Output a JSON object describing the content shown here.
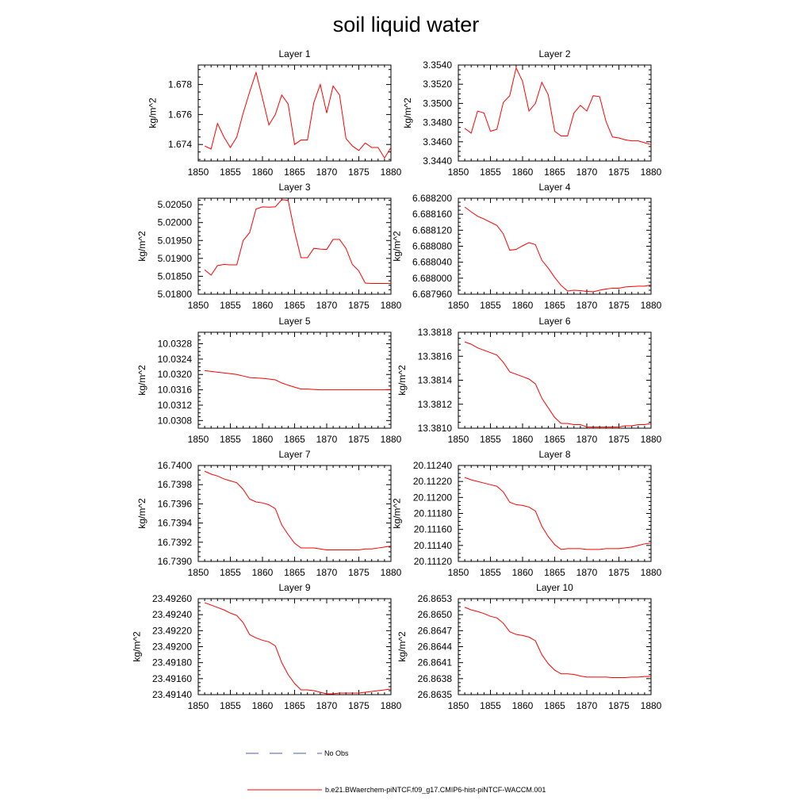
{
  "title": "soil liquid water",
  "colors": {
    "series": "#ff0000",
    "obs": "#4a5ab0",
    "axis": "#000000"
  },
  "legend": {
    "obs_label": "No Obs",
    "model_label": "b.e21.BWaerchem-piNTCF.f09_g17.CMIP6-hist-piNTCF-WACCM.001"
  },
  "chart_data": [
    {
      "type": "line",
      "title": "Layer 1",
      "xlabel": "",
      "ylabel": "kg/m^2",
      "xlim": [
        1850,
        1880
      ],
      "ylim": [
        1.6729,
        1.6793
      ],
      "xticks": [
        "1850",
        "1855",
        "1860",
        "1865",
        "1870",
        "1875",
        "1880"
      ],
      "yticks": [
        1.674,
        1.676,
        1.678
      ],
      "ytick_labels": [
        "1.674",
        "1.676",
        "1.678"
      ],
      "x": [
        1851,
        1852,
        1853,
        1854,
        1855,
        1856,
        1857,
        1858,
        1859,
        1860,
        1861,
        1862,
        1863,
        1864,
        1865,
        1866,
        1867,
        1868,
        1869,
        1870,
        1871,
        1872,
        1873,
        1874,
        1875,
        1876,
        1877,
        1878,
        1879,
        1880
      ],
      "series": [
        {
          "values": [
            1.6739,
            1.6737,
            1.6754,
            1.6745,
            1.6738,
            1.6745,
            1.6761,
            1.6775,
            1.6788,
            1.6771,
            1.6753,
            1.676,
            1.6773,
            1.6767,
            1.674,
            1.6743,
            1.6743,
            1.6768,
            1.678,
            1.6761,
            1.6779,
            1.6773,
            1.6744,
            1.6739,
            1.6736,
            1.6741,
            1.6738,
            1.6738,
            1.6731,
            1.6738
          ]
        }
      ]
    },
    {
      "type": "line",
      "title": "Layer 2",
      "xlabel": "",
      "ylabel": "kg/m^2",
      "xlim": [
        1850,
        1880
      ],
      "ylim": [
        3.344,
        3.354
      ],
      "xticks": [
        "1850",
        "1855",
        "1860",
        "1865",
        "1870",
        "1875",
        "1880"
      ],
      "yticks": [
        3.344,
        3.346,
        3.348,
        3.35,
        3.352,
        3.354
      ],
      "ytick_labels": [
        "3.3440",
        "3.3460",
        "3.3480",
        "3.3500",
        "3.3520",
        "3.3540"
      ],
      "x": [
        1851,
        1852,
        1853,
        1854,
        1855,
        1856,
        1857,
        1858,
        1859,
        1860,
        1861,
        1862,
        1863,
        1864,
        1865,
        1866,
        1867,
        1868,
        1869,
        1870,
        1871,
        1872,
        1873,
        1874,
        1875,
        1876,
        1877,
        1878,
        1879,
        1880
      ],
      "series": [
        {
          "values": [
            3.3474,
            3.3469,
            3.3492,
            3.349,
            3.3471,
            3.3473,
            3.3501,
            3.3508,
            3.3537,
            3.3523,
            3.3492,
            3.35,
            3.3522,
            3.3509,
            3.3471,
            3.3466,
            3.3466,
            3.349,
            3.3498,
            3.3492,
            3.3508,
            3.3507,
            3.3481,
            3.3465,
            3.3464,
            3.3462,
            3.3461,
            3.3461,
            3.3459,
            3.3457
          ]
        }
      ]
    },
    {
      "type": "line",
      "title": "Layer 3",
      "xlabel": "",
      "ylabel": "kg/m^2",
      "xlim": [
        1850,
        1880
      ],
      "ylim": [
        5.018,
        5.02068
      ],
      "xticks": [
        "1850",
        "1855",
        "1860",
        "1865",
        "1870",
        "1875",
        "1880"
      ],
      "yticks": [
        5.018,
        5.0185,
        5.019,
        5.0195,
        5.02,
        5.0205
      ],
      "ytick_labels": [
        "5.01800",
        "5.01850",
        "5.01900",
        "5.01950",
        "5.02000",
        "5.02050"
      ],
      "x": [
        1851,
        1852,
        1853,
        1854,
        1855,
        1856,
        1857,
        1858,
        1859,
        1860,
        1861,
        1862,
        1863,
        1864,
        1865,
        1866,
        1867,
        1868,
        1869,
        1870,
        1871,
        1872,
        1873,
        1874,
        1875,
        1876,
        1877,
        1878,
        1879,
        1880
      ],
      "series": [
        {
          "values": [
            5.01868,
            5.01853,
            5.0188,
            5.01883,
            5.01882,
            5.01882,
            5.0195,
            5.01972,
            5.02038,
            5.02044,
            5.02043,
            5.02044,
            5.02064,
            5.02062,
            5.01975,
            5.01902,
            5.01902,
            5.01928,
            5.01926,
            5.01925,
            5.01953,
            5.01953,
            5.01928,
            5.01883,
            5.01865,
            5.01831,
            5.0183,
            5.0183,
            5.0183,
            5.0183
          ]
        }
      ]
    },
    {
      "type": "line",
      "title": "Layer 4",
      "xlabel": "",
      "ylabel": "kg/m^2",
      "xlim": [
        1850,
        1880
      ],
      "ylim": [
        6.68796,
        6.6882
      ],
      "xticks": [
        "1850",
        "1855",
        "1860",
        "1865",
        "1870",
        "1875",
        "1880"
      ],
      "yticks": [
        6.68796,
        6.688,
        6.68804,
        6.68808,
        6.68812,
        6.68816,
        6.6882
      ],
      "ytick_labels": [
        "6.687960",
        "6.688000",
        "6.688040",
        "6.688080",
        "6.688120",
        "6.688160",
        "6.688200"
      ],
      "x": [
        1851,
        1852,
        1853,
        1854,
        1855,
        1856,
        1857,
        1858,
        1859,
        1860,
        1861,
        1862,
        1863,
        1864,
        1865,
        1866,
        1867,
        1868,
        1869,
        1870,
        1871,
        1872,
        1873,
        1874,
        1875,
        1876,
        1877,
        1878,
        1879,
        1880
      ],
      "series": [
        {
          "values": [
            6.688178,
            6.688166,
            6.688155,
            6.688148,
            6.68814,
            6.688132,
            6.688111,
            6.68807,
            6.688072,
            6.688081,
            6.688089,
            6.688084,
            6.688045,
            6.688025,
            6.688002,
            6.687982,
            6.687968,
            6.68797,
            6.687969,
            6.687967,
            6.687966,
            6.68797,
            6.687973,
            6.687975,
            6.687975,
            6.687978,
            6.687979,
            6.68798,
            6.68798,
            6.687983
          ]
        }
      ]
    },
    {
      "type": "line",
      "title": "Layer 5",
      "xlabel": "",
      "ylabel": "kg/m^2",
      "xlim": [
        1850,
        1880
      ],
      "ylim": [
        10.0306,
        10.0331
      ],
      "xticks": [
        "1850",
        "1855",
        "1860",
        "1865",
        "1870",
        "1875",
        "1880"
      ],
      "yticks": [
        10.0308,
        10.0312,
        10.0316,
        10.032,
        10.0324,
        10.0328
      ],
      "ytick_labels": [
        "10.0308",
        "10.0312",
        "10.0316",
        "10.0320",
        "10.0324",
        "10.0328"
      ],
      "x": [
        1851,
        1852,
        1853,
        1854,
        1855,
        1856,
        1857,
        1858,
        1859,
        1860,
        1861,
        1862,
        1863,
        1864,
        1865,
        1866,
        1867,
        1868,
        1869,
        1870,
        1871,
        1872,
        1873,
        1874,
        1875,
        1876,
        1877,
        1878,
        1879,
        1880
      ],
      "series": [
        {
          "values": [
            10.0321,
            10.03208,
            10.03206,
            10.03204,
            10.03202,
            10.032,
            10.03196,
            10.03192,
            10.03191,
            10.0319,
            10.03188,
            10.03186,
            10.03178,
            10.03172,
            10.03167,
            10.03162,
            10.03162,
            10.03161,
            10.0316,
            10.0316,
            10.0316,
            10.0316,
            10.0316,
            10.0316,
            10.0316,
            10.0316,
            10.0316,
            10.0316,
            10.0316,
            10.03161
          ]
        }
      ]
    },
    {
      "type": "line",
      "title": "Layer 6",
      "xlabel": "",
      "ylabel": "kg/m^2",
      "xlim": [
        1850,
        1880
      ],
      "ylim": [
        13.381,
        13.3818
      ],
      "xticks": [
        "1850",
        "1855",
        "1860",
        "1865",
        "1870",
        "1875",
        "1880"
      ],
      "yticks": [
        13.381,
        13.3812,
        13.3814,
        13.3816,
        13.3818
      ],
      "ytick_labels": [
        "13.3810",
        "13.3812",
        "13.3814",
        "13.3816",
        "13.3818"
      ],
      "x": [
        1851,
        1852,
        1853,
        1854,
        1855,
        1856,
        1857,
        1858,
        1859,
        1860,
        1861,
        1862,
        1863,
        1864,
        1865,
        1866,
        1867,
        1868,
        1869,
        1870,
        1871,
        1872,
        1873,
        1874,
        1875,
        1876,
        1877,
        1878,
        1879,
        1880
      ],
      "series": [
        {
          "values": [
            13.38172,
            13.3817,
            13.38167,
            13.38165,
            13.38163,
            13.38161,
            13.38155,
            13.38147,
            13.38145,
            13.38143,
            13.38141,
            13.38137,
            13.38125,
            13.38117,
            13.38109,
            13.38104,
            13.38104,
            13.38103,
            13.38103,
            13.38101,
            13.38101,
            13.38101,
            13.38101,
            13.38101,
            13.38101,
            13.38102,
            13.38102,
            13.38103,
            13.38103,
            13.38104
          ]
        }
      ]
    },
    {
      "type": "line",
      "title": "Layer 7",
      "xlabel": "",
      "ylabel": "kg/m^2",
      "xlim": [
        1850,
        1880
      ],
      "ylim": [
        16.739,
        16.74
      ],
      "xticks": [
        "1850",
        "1855",
        "1860",
        "1865",
        "1870",
        "1875",
        "1880"
      ],
      "yticks": [
        16.739,
        16.7392,
        16.7394,
        16.7396,
        16.7398,
        16.74
      ],
      "ytick_labels": [
        "16.7390",
        "16.7392",
        "16.7394",
        "16.7396",
        "16.7398",
        "16.7400"
      ],
      "x": [
        1851,
        1852,
        1853,
        1854,
        1855,
        1856,
        1857,
        1858,
        1859,
        1860,
        1861,
        1862,
        1863,
        1864,
        1865,
        1866,
        1867,
        1868,
        1869,
        1870,
        1871,
        1872,
        1873,
        1874,
        1875,
        1876,
        1877,
        1878,
        1879,
        1880
      ],
      "series": [
        {
          "values": [
            16.73994,
            16.73991,
            16.73989,
            16.73986,
            16.73984,
            16.73982,
            16.73975,
            16.73965,
            16.73962,
            16.73961,
            16.73959,
            16.73955,
            16.73938,
            16.73928,
            16.73919,
            16.73914,
            16.73914,
            16.73914,
            16.73913,
            16.73912,
            16.73912,
            16.73912,
            16.73912,
            16.73912,
            16.73912,
            16.73913,
            16.73913,
            16.73914,
            16.73915,
            16.73916
          ]
        }
      ]
    },
    {
      "type": "line",
      "title": "Layer 8",
      "xlabel": "",
      "ylabel": "kg/m^2",
      "xlim": [
        1850,
        1880
      ],
      "ylim": [
        20.1112,
        20.1124
      ],
      "xticks": [
        "1850",
        "1855",
        "1860",
        "1865",
        "1870",
        "1875",
        "1880"
      ],
      "yticks": [
        20.1112,
        20.1114,
        20.1116,
        20.1118,
        20.112,
        20.1122,
        20.1124
      ],
      "ytick_labels": [
        "20.11120",
        "20.11140",
        "20.11160",
        "20.11180",
        "20.11200",
        "20.11220",
        "20.11240"
      ],
      "x": [
        1851,
        1852,
        1853,
        1854,
        1855,
        1856,
        1857,
        1858,
        1859,
        1860,
        1861,
        1862,
        1863,
        1864,
        1865,
        1866,
        1867,
        1868,
        1869,
        1870,
        1871,
        1872,
        1873,
        1874,
        1875,
        1876,
        1877,
        1878,
        1879,
        1880
      ],
      "series": [
        {
          "values": [
            20.11225,
            20.11222,
            20.1122,
            20.11218,
            20.11216,
            20.11214,
            20.11207,
            20.11194,
            20.11191,
            20.1119,
            20.11188,
            20.11183,
            20.11164,
            20.11151,
            20.11141,
            20.11135,
            20.11136,
            20.11136,
            20.11136,
            20.11135,
            20.11135,
            20.11135,
            20.11136,
            20.11136,
            20.11136,
            20.11137,
            20.11138,
            20.1114,
            20.11142,
            20.11143
          ]
        }
      ]
    },
    {
      "type": "line",
      "title": "Layer 9",
      "xlabel": "",
      "ylabel": "kg/m^2",
      "xlim": [
        1850,
        1880
      ],
      "ylim": [
        23.4914,
        23.4926
      ],
      "xticks": [
        "1850",
        "1855",
        "1860",
        "1865",
        "1870",
        "1875",
        "1880"
      ],
      "yticks": [
        23.4914,
        23.4916,
        23.4918,
        23.492,
        23.4922,
        23.4924,
        23.4926
      ],
      "ytick_labels": [
        "23.49140",
        "23.49160",
        "23.49180",
        "23.49200",
        "23.49220",
        "23.49240",
        "23.49260"
      ],
      "x": [
        1851,
        1852,
        1853,
        1854,
        1855,
        1856,
        1857,
        1858,
        1859,
        1860,
        1861,
        1862,
        1863,
        1864,
        1865,
        1866,
        1867,
        1868,
        1869,
        1870,
        1871,
        1872,
        1873,
        1874,
        1875,
        1876,
        1877,
        1878,
        1879,
        1880
      ],
      "series": [
        {
          "values": [
            23.49255,
            23.49252,
            23.49249,
            23.49246,
            23.49242,
            23.49239,
            23.4923,
            23.49215,
            23.49211,
            23.49208,
            23.49206,
            23.49201,
            23.4918,
            23.49165,
            23.49154,
            23.49146,
            23.49146,
            23.49145,
            23.49143,
            23.49141,
            23.49141,
            23.49142,
            23.49142,
            23.49142,
            23.49142,
            23.49143,
            23.49144,
            23.49145,
            23.49146,
            23.49147
          ]
        }
      ]
    },
    {
      "type": "line",
      "title": "Layer 10",
      "xlabel": "",
      "ylabel": "kg/m^2",
      "xlim": [
        1850,
        1880
      ],
      "ylim": [
        26.8635,
        26.8653
      ],
      "xticks": [
        "1850",
        "1855",
        "1860",
        "1865",
        "1870",
        "1875",
        "1880"
      ],
      "yticks": [
        26.8635,
        26.8638,
        26.8641,
        26.8644,
        26.8647,
        26.865,
        26.8653
      ],
      "ytick_labels": [
        "26.8635",
        "26.8638",
        "26.8641",
        "26.8644",
        "26.8647",
        "26.8650",
        "26.8653"
      ],
      "x": [
        1851,
        1852,
        1853,
        1854,
        1855,
        1856,
        1857,
        1858,
        1859,
        1860,
        1861,
        1862,
        1863,
        1864,
        1865,
        1866,
        1867,
        1868,
        1869,
        1870,
        1871,
        1872,
        1873,
        1874,
        1875,
        1876,
        1877,
        1878,
        1879,
        1880
      ],
      "series": [
        {
          "values": [
            26.86514,
            26.86509,
            26.86506,
            26.86502,
            26.86497,
            26.86494,
            26.86484,
            26.86468,
            26.86463,
            26.86461,
            26.86458,
            26.86451,
            26.86425,
            26.86408,
            26.86396,
            26.86389,
            26.86389,
            26.86388,
            26.86385,
            26.86383,
            26.86383,
            26.86383,
            26.86383,
            26.86382,
            26.86382,
            26.86382,
            26.86383,
            26.86383,
            26.86384,
            26.86384
          ]
        }
      ]
    }
  ]
}
